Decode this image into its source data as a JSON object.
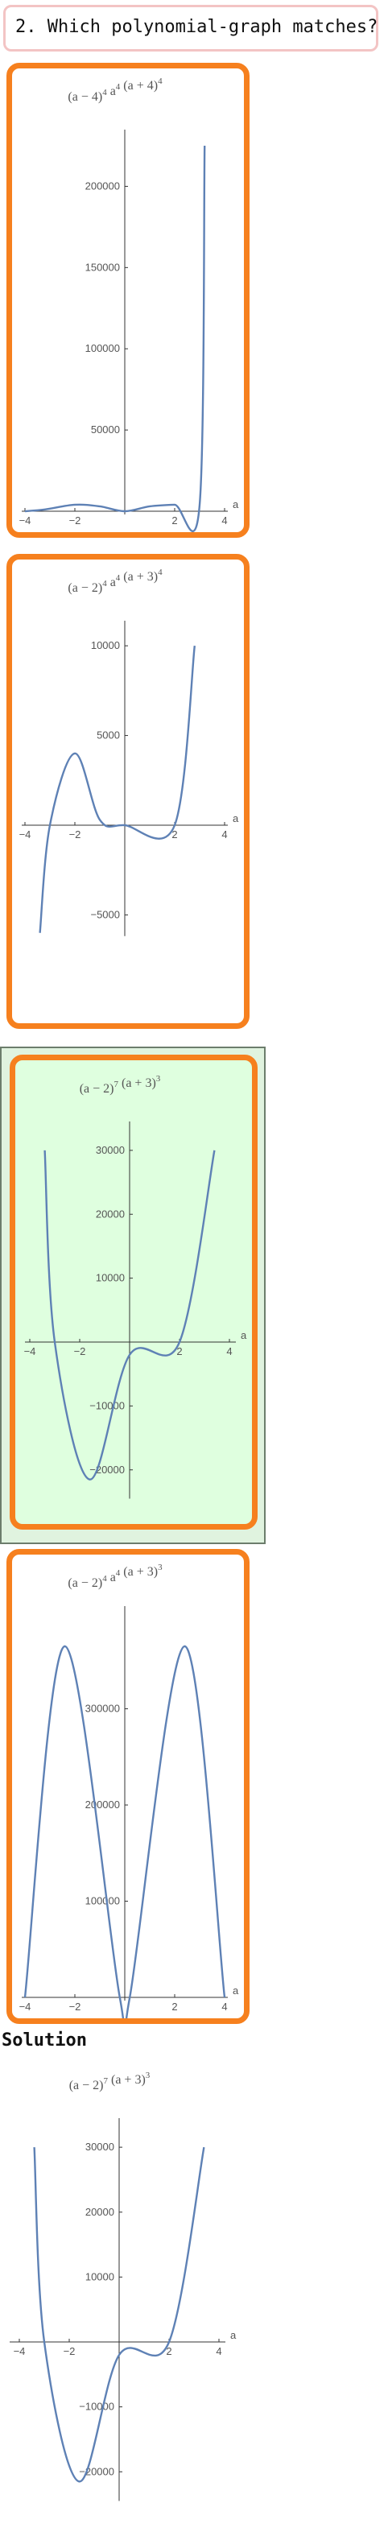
{
  "question": {
    "text": "2. Which polynomial-graph matches?"
  },
  "solution_label": "Solution",
  "colors": {
    "option_border": "#f6801e",
    "correct_bg": "#dfffdf",
    "curve": "#5e81b5",
    "question_border": "#f3c4c4"
  },
  "chart_data": [
    {
      "type": "line",
      "id": "option-1",
      "title": {
        "base1": "(a − 4)",
        "exp1": "4",
        "base2": " a",
        "exp2": "4",
        "base3": " (a + 4)",
        "exp3": "4"
      },
      "xlabel": "a",
      "xlim": [
        -4.2,
        4.6
      ],
      "ylim": [
        0,
        225000
      ],
      "x_ticks": [
        -4,
        -2,
        2,
        4
      ],
      "y_ticks": [
        50000,
        100000,
        150000,
        200000
      ],
      "y_tick_labels": [
        "50000",
        "100000",
        "150000",
        "200000"
      ],
      "x_tick_labels": [
        "−4",
        "−2",
        "2",
        "4"
      ],
      "exponents": [
        {
          "root": 4,
          "power": 4
        },
        {
          "root": 0,
          "power": 4
        },
        {
          "root": -4,
          "power": 4
        }
      ],
      "points": [
        [
          -4.0,
          0
        ],
        [
          -3.2,
          1100
        ],
        [
          -2.0,
          4000
        ],
        [
          -1.0,
          3000
        ],
        [
          0,
          0
        ],
        [
          1.0,
          3000
        ],
        [
          2.0,
          4000
        ],
        [
          3.0,
          4000
        ],
        [
          3.2,
          225000
        ]
      ]
    },
    {
      "type": "line",
      "id": "option-2",
      "title": {
        "base1": "(a − 2)",
        "exp1": "4",
        "base2": " a",
        "exp2": "4",
        "base3": " (a + 3)",
        "exp3": "4"
      },
      "xlabel": "a",
      "xlim": [
        -4.2,
        4.6
      ],
      "ylim": [
        -6000,
        10500
      ],
      "x_ticks": [
        -4,
        -2,
        2,
        4
      ],
      "y_ticks": [
        -5000,
        5000,
        10000
      ],
      "y_tick_labels": [
        "−5000",
        "5000",
        "10000"
      ],
      "x_tick_labels": [
        "−4",
        "−2",
        "2",
        "4"
      ],
      "points": [
        [
          -3.4,
          -6000
        ],
        [
          -3.0,
          0
        ],
        [
          -2.0,
          4000
        ],
        [
          -1.0,
          300
        ],
        [
          0,
          0
        ],
        [
          2.0,
          0
        ],
        [
          2.8,
          10000
        ]
      ]
    },
    {
      "type": "line",
      "id": "option-3",
      "title": {
        "base1": "(a − 2)",
        "exp1": "7",
        "base2": " (a + 3)",
        "exp2": "3",
        "base3": "",
        "exp3": ""
      },
      "xlabel": "a",
      "xlim": [
        -4.2,
        4.6
      ],
      "ylim": [
        -24000,
        32000
      ],
      "x_ticks": [
        -4,
        -2,
        2,
        4
      ],
      "y_ticks": [
        -20000,
        -10000,
        10000,
        20000,
        30000
      ],
      "y_tick_labels": [
        "−20000",
        "−10000",
        "10000",
        "20000",
        "30000"
      ],
      "x_tick_labels": [
        "−4",
        "−2",
        "2",
        "4"
      ],
      "points": [
        [
          -3.4,
          30000
        ],
        [
          -3.0,
          0
        ],
        [
          -1.6,
          -21500
        ],
        [
          0,
          -2000
        ],
        [
          2.0,
          0
        ],
        [
          3.4,
          30000
        ]
      ]
    },
    {
      "type": "line",
      "id": "option-4",
      "title": {
        "base1": "(a − 2)",
        "exp1": "4",
        "base2": " a",
        "exp2": "4",
        "base3": " (a + 3)",
        "exp3": "3"
      },
      "xlabel": "a",
      "xlim": [
        -4.2,
        4.6
      ],
      "ylim": [
        0,
        390000
      ],
      "x_ticks": [
        -4,
        -2,
        2,
        4
      ],
      "y_ticks": [
        100000,
        200000,
        300000
      ],
      "y_tick_labels": [
        "100000",
        "200000",
        "300000"
      ],
      "x_tick_labels": [
        "−4",
        "−2",
        "2",
        "4"
      ],
      "points": [
        [
          -4.0,
          0
        ],
        [
          -2.4,
          365000
        ],
        [
          -0.2,
          0
        ],
        [
          0.2,
          0
        ],
        [
          2.4,
          365000
        ],
        [
          4.0,
          0
        ]
      ]
    },
    {
      "type": "line",
      "id": "solution",
      "title": {
        "base1": "(a − 2)",
        "exp1": "7",
        "base2": " (a + 3)",
        "exp2": "3",
        "base3": "",
        "exp3": ""
      },
      "xlabel": "a",
      "xlim": [
        -4.2,
        4.6
      ],
      "ylim": [
        -24000,
        32000
      ],
      "x_ticks": [
        -4,
        -2,
        2,
        4
      ],
      "y_ticks": [
        -20000,
        -10000,
        10000,
        20000,
        30000
      ],
      "y_tick_labels": [
        "−20000",
        "−10000",
        "10000",
        "20000",
        "30000"
      ],
      "x_tick_labels": [
        "−4",
        "−2",
        "2",
        "4"
      ],
      "points": [
        [
          -3.4,
          30000
        ],
        [
          -3.0,
          0
        ],
        [
          -1.6,
          -21500
        ],
        [
          0,
          -2000
        ],
        [
          2.0,
          0
        ],
        [
          3.4,
          30000
        ]
      ]
    }
  ]
}
